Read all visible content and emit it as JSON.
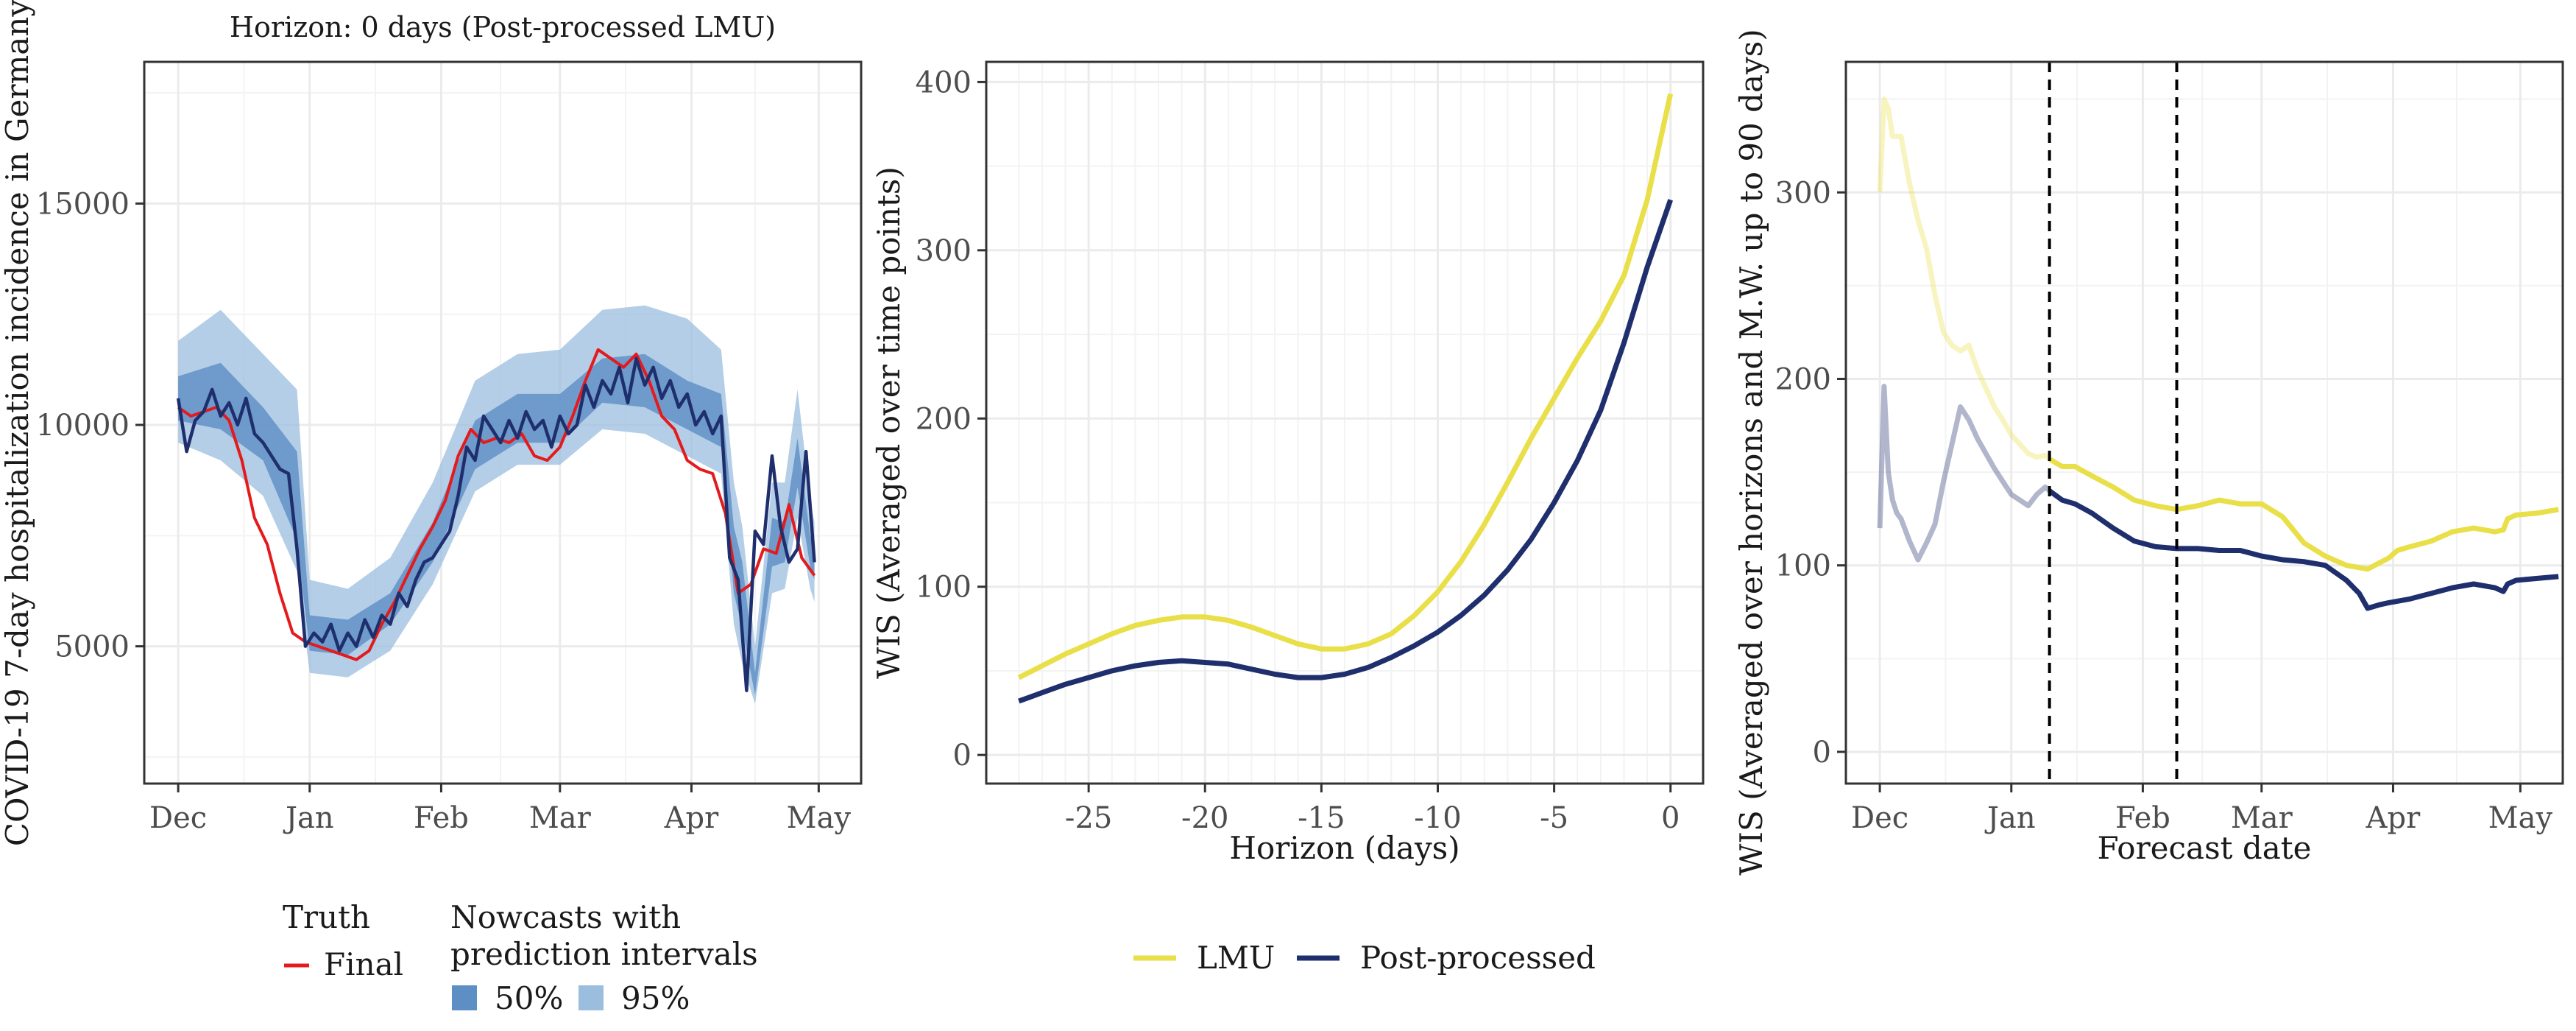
{
  "colors": {
    "truth": "#e41a1c",
    "nowcast": "#1f2f6e",
    "band50": "#5d8fc4",
    "band95": "#9bbedf",
    "lmu": "#e9df48",
    "post": "#1f2f6e",
    "grid": "#ebebeb",
    "frame": "#333333"
  },
  "legend_left": {
    "truth_title": "Truth",
    "truth_item": "Final",
    "nowcast_title_1": "Nowcasts with",
    "nowcast_title_2": "prediction intervals",
    "band50": "50%",
    "band95": "95%"
  },
  "legend_center": {
    "lmu": "LMU",
    "post": "Post-processed"
  },
  "chart_data": [
    {
      "type": "line",
      "title": "Horizon: 0 days (Post-processed LMU)",
      "xlabel": "",
      "ylabel": "COVID-19 7-day hospitalization incidence in Germany",
      "x_ticks": [
        "Dec",
        "Jan",
        "Feb",
        "Mar",
        "Apr",
        "May"
      ],
      "x_tick_pos": [
        0,
        31,
        62,
        90,
        121,
        151
      ],
      "y_ticks": [
        5000,
        10000,
        15000
      ],
      "xlim": [
        -8,
        161
      ],
      "ylim": [
        1900,
        18200
      ],
      "x_unit": "days since 1 Dec",
      "series": [
        {
          "name": "Final",
          "role": "truth",
          "x": [
            0,
            3,
            6,
            9,
            12,
            15,
            18,
            21,
            24,
            27,
            30,
            33,
            36,
            39,
            42,
            45,
            48,
            51,
            54,
            57,
            60,
            63,
            66,
            69,
            72,
            75,
            78,
            81,
            84,
            87,
            90,
            93,
            96,
            99,
            102,
            105,
            108,
            111,
            114,
            117,
            120,
            123,
            126,
            129,
            132,
            135,
            138,
            141,
            144,
            147,
            150
          ],
          "y": [
            10400,
            10200,
            10300,
            10400,
            10100,
            9200,
            7900,
            7300,
            6200,
            5300,
            5100,
            5000,
            4900,
            4800,
            4700,
            4900,
            5500,
            6000,
            6600,
            7200,
            7700,
            8300,
            9300,
            9900,
            9600,
            9700,
            9600,
            9800,
            9300,
            9200,
            9500,
            10200,
            11000,
            11700,
            11500,
            11300,
            11600,
            11000,
            10200,
            9900,
            9200,
            9000,
            8900,
            8000,
            6200,
            6400,
            7200,
            7100,
            8200,
            7000,
            6600
          ]
        },
        {
          "name": "Nowcast",
          "role": "nowcast",
          "x": [
            0,
            2,
            4,
            6,
            8,
            10,
            12,
            14,
            16,
            18,
            20,
            22,
            24,
            26,
            28,
            30,
            32,
            34,
            36,
            38,
            40,
            42,
            44,
            46,
            48,
            50,
            52,
            54,
            56,
            58,
            60,
            62,
            64,
            66,
            68,
            70,
            72,
            74,
            76,
            78,
            80,
            82,
            84,
            86,
            88,
            90,
            92,
            94,
            96,
            98,
            100,
            102,
            104,
            106,
            108,
            110,
            112,
            114,
            116,
            118,
            120,
            122,
            124,
            126,
            128,
            130,
            132,
            134,
            136,
            138,
            140,
            142,
            144,
            146,
            148,
            150
          ],
          "y": [
            10600,
            9400,
            10100,
            10300,
            10800,
            10200,
            10500,
            10000,
            10600,
            9800,
            9600,
            9300,
            9000,
            8900,
            7200,
            5000,
            5300,
            5100,
            5500,
            4900,
            5300,
            5000,
            5600,
            5200,
            5700,
            5500,
            6200,
            5900,
            6500,
            6900,
            7000,
            7300,
            7600,
            8400,
            9500,
            9200,
            10200,
            9900,
            9600,
            10100,
            9700,
            10300,
            9900,
            10100,
            9500,
            10200,
            9800,
            10000,
            10900,
            10400,
            11000,
            10700,
            11300,
            10500,
            11500,
            10900,
            11300,
            10600,
            11000,
            10400,
            10700,
            10000,
            10300,
            9800,
            10200,
            7000,
            6500,
            4000,
            7600,
            7300,
            9300,
            7700,
            6900,
            7200,
            9400,
            6900
          ]
        },
        {
          "name": "95%",
          "role": "band95",
          "x": [
            0,
            10,
            20,
            28,
            31,
            40,
            50,
            60,
            70,
            80,
            90,
            100,
            110,
            120,
            128,
            131,
            133,
            136,
            140,
            143,
            146,
            149,
            150
          ],
          "lower": [
            9600,
            9200,
            8400,
            6700,
            4400,
            4300,
            4900,
            6400,
            8500,
            9100,
            9100,
            9900,
            9800,
            9300,
            8900,
            5500,
            4600,
            3700,
            6200,
            6300,
            7900,
            6300,
            6000
          ],
          "upper": [
            11900,
            12600,
            11600,
            10800,
            6500,
            6300,
            7000,
            8700,
            11000,
            11600,
            11700,
            12600,
            12700,
            12400,
            11700,
            8700,
            7700,
            5000,
            8700,
            8700,
            10800,
            8300,
            7800
          ]
        },
        {
          "name": "50%",
          "role": "band50",
          "x": [
            0,
            10,
            20,
            28,
            31,
            40,
            50,
            60,
            70,
            80,
            90,
            100,
            110,
            120,
            128,
            131,
            133,
            136,
            140,
            143,
            146,
            149,
            150
          ],
          "lower": [
            10100,
            9900,
            9200,
            7400,
            4900,
            4800,
            5500,
            6900,
            9000,
            9600,
            9600,
            10500,
            10400,
            9900,
            9500,
            6200,
            5400,
            3900,
            6800,
            6900,
            8600,
            6800,
            6500
          ],
          "upper": [
            11100,
            11400,
            10400,
            9400,
            5700,
            5600,
            6200,
            7800,
            10100,
            10700,
            10700,
            11500,
            11600,
            11000,
            10700,
            7700,
            6900,
            4400,
            7900,
            7800,
            9700,
            7500,
            7200
          ]
        }
      ]
    },
    {
      "type": "line",
      "title": "",
      "xlabel": "Horizon (days)",
      "ylabel": "WIS (Averaged over time points)",
      "x_ticks": [
        -25,
        -20,
        -15,
        -10,
        -5,
        0
      ],
      "y_ticks": [
        0,
        100,
        200,
        300,
        400
      ],
      "xlim": [
        -29.4,
        1.4
      ],
      "ylim": [
        -17,
        412
      ],
      "legend": "bottom",
      "series": [
        {
          "name": "LMU",
          "x": [
            -28,
            -27,
            -26,
            -25,
            -24,
            -23,
            -22,
            -21,
            -20,
            -19,
            -18,
            -17,
            -16,
            -15,
            -14,
            -13,
            -12,
            -11,
            -10,
            -9,
            -8,
            -7,
            -6,
            -5,
            -4,
            -3,
            -2,
            -1,
            0
          ],
          "y": [
            46,
            53,
            60,
            66,
            72,
            77,
            80,
            82,
            82,
            80,
            76,
            71,
            66,
            63,
            63,
            66,
            72,
            83,
            97,
            115,
            137,
            162,
            188,
            212,
            236,
            258,
            285,
            330,
            393
          ]
        },
        {
          "name": "Post-processed",
          "x": [
            -28,
            -27,
            -26,
            -25,
            -24,
            -23,
            -22,
            -21,
            -20,
            -19,
            -18,
            -17,
            -16,
            -15,
            -14,
            -13,
            -12,
            -11,
            -10,
            -9,
            -8,
            -7,
            -6,
            -5,
            -4,
            -3,
            -2,
            -1,
            0
          ],
          "y": [
            32,
            37,
            42,
            46,
            50,
            53,
            55,
            56,
            55,
            54,
            51,
            48,
            46,
            46,
            48,
            52,
            58,
            65,
            73,
            83,
            95,
            110,
            128,
            150,
            175,
            205,
            245,
            290,
            330
          ]
        }
      ]
    },
    {
      "type": "line",
      "title": "",
      "xlabel": "Forecast date",
      "ylabel": "WIS (Averaged over horizons and M.W. up to 90 days)",
      "x_ticks": [
        "Dec",
        "Jan",
        "Feb",
        "Mar",
        "Apr",
        "May"
      ],
      "x_tick_pos": [
        0,
        31,
        62,
        90,
        121,
        151
      ],
      "y_ticks": [
        0,
        100,
        200,
        300
      ],
      "xlim": [
        -8,
        161
      ],
      "ylim": [
        -17,
        370
      ],
      "x_unit": "days since 1 Dec",
      "vlines": [
        40,
        70
      ],
      "faded_before": 40,
      "series": [
        {
          "name": "LMU",
          "x": [
            0,
            1,
            2,
            3,
            5,
            7,
            9,
            11,
            13,
            15,
            17,
            19,
            21,
            23,
            25,
            27,
            29,
            31,
            33,
            35,
            37,
            39,
            40,
            43,
            46,
            50,
            55,
            60,
            65,
            70,
            75,
            80,
            85,
            90,
            95,
            100,
            105,
            110,
            115,
            120,
            122,
            125,
            130,
            135,
            140,
            145,
            147,
            148,
            150,
            155,
            160
          ],
          "y": [
            300,
            350,
            345,
            330,
            330,
            305,
            285,
            270,
            245,
            225,
            218,
            215,
            218,
            205,
            195,
            185,
            178,
            170,
            165,
            160,
            158,
            159,
            157,
            153,
            153,
            148,
            142,
            135,
            132,
            130,
            132,
            135,
            133,
            133,
            126,
            112,
            105,
            100,
            98,
            104,
            108,
            110,
            113,
            118,
            120,
            118,
            119,
            125,
            127,
            128,
            130
          ]
        },
        {
          "name": "Post-processed",
          "x": [
            0,
            1,
            2,
            3,
            4,
            5,
            7,
            9,
            11,
            13,
            15,
            17,
            19,
            21,
            23,
            25,
            27,
            29,
            31,
            33,
            35,
            37,
            39,
            40,
            43,
            46,
            50,
            55,
            60,
            65,
            70,
            75,
            80,
            85,
            90,
            95,
            100,
            105,
            110,
            113,
            115,
            118,
            120,
            125,
            130,
            135,
            140,
            145,
            147,
            148,
            150,
            155,
            160
          ],
          "y": [
            120,
            196,
            150,
            135,
            128,
            125,
            113,
            103,
            112,
            122,
            145,
            165,
            185,
            178,
            168,
            160,
            152,
            145,
            138,
            135,
            132,
            138,
            142,
            140,
            135,
            133,
            128,
            120,
            113,
            110,
            109,
            109,
            108,
            108,
            105,
            103,
            102,
            100,
            92,
            85,
            77,
            79,
            80,
            82,
            85,
            88,
            90,
            88,
            86,
            90,
            92,
            93,
            94
          ]
        }
      ]
    }
  ]
}
